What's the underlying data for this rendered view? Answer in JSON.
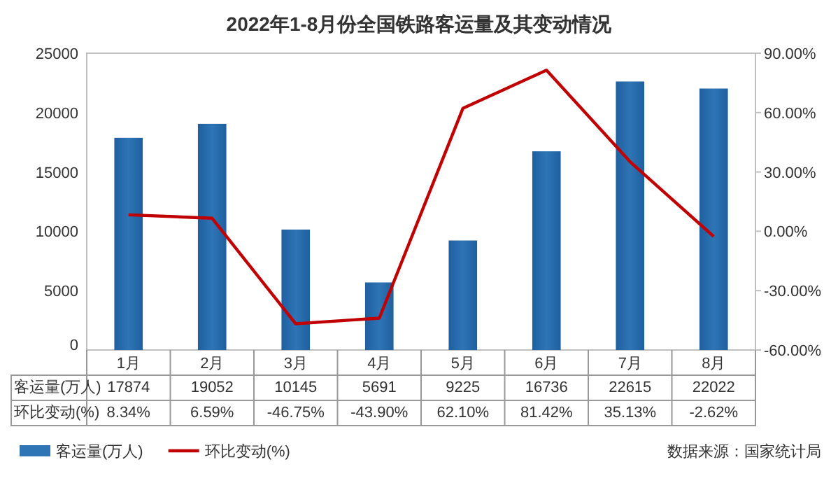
{
  "chart_data": {
    "type": "bar",
    "title": "2022年1-8月份全国铁路客运量及其变动情况",
    "categories": [
      "1月",
      "2月",
      "3月",
      "4月",
      "5月",
      "6月",
      "7月",
      "8月"
    ],
    "series": [
      {
        "name": "客运量(万人)",
        "color": "#2e75b6",
        "values": [
          17874,
          19052,
          10145,
          5691,
          9225,
          16736,
          22615,
          22022
        ],
        "value_labels": [
          "17874",
          "19052",
          "10145",
          "5691",
          "9225",
          "16736",
          "22615",
          "22022"
        ]
      },
      {
        "name": "环比变动(%)",
        "type": "line",
        "axis": "y2",
        "color": "#c00000",
        "values": [
          8.34,
          6.59,
          -46.75,
          -43.9,
          62.1,
          81.42,
          35.13,
          -2.62
        ],
        "value_labels": [
          "8.34%",
          "6.59%",
          "-46.75%",
          "-43.90%",
          "62.10%",
          "81.42%",
          "35.13%",
          "-2.62%"
        ]
      }
    ],
    "ylim": [
      0,
      25000
    ],
    "yticks": [
      0,
      5000,
      10000,
      15000,
      20000,
      25000
    ],
    "y2lim": [
      -60,
      90
    ],
    "y2ticks": [
      {
        "value": -60,
        "label": "-60.00%"
      },
      {
        "value": -30,
        "label": "-30.00%"
      },
      {
        "value": 0,
        "label": "0.00%"
      },
      {
        "value": 30,
        "label": "30.00%"
      },
      {
        "value": 60,
        "label": "60.00%"
      },
      {
        "value": 90,
        "label": "90.00%"
      }
    ],
    "legend": "bottom left",
    "grid": false,
    "annotations": [
      "数据来源：国家统计局"
    ]
  }
}
